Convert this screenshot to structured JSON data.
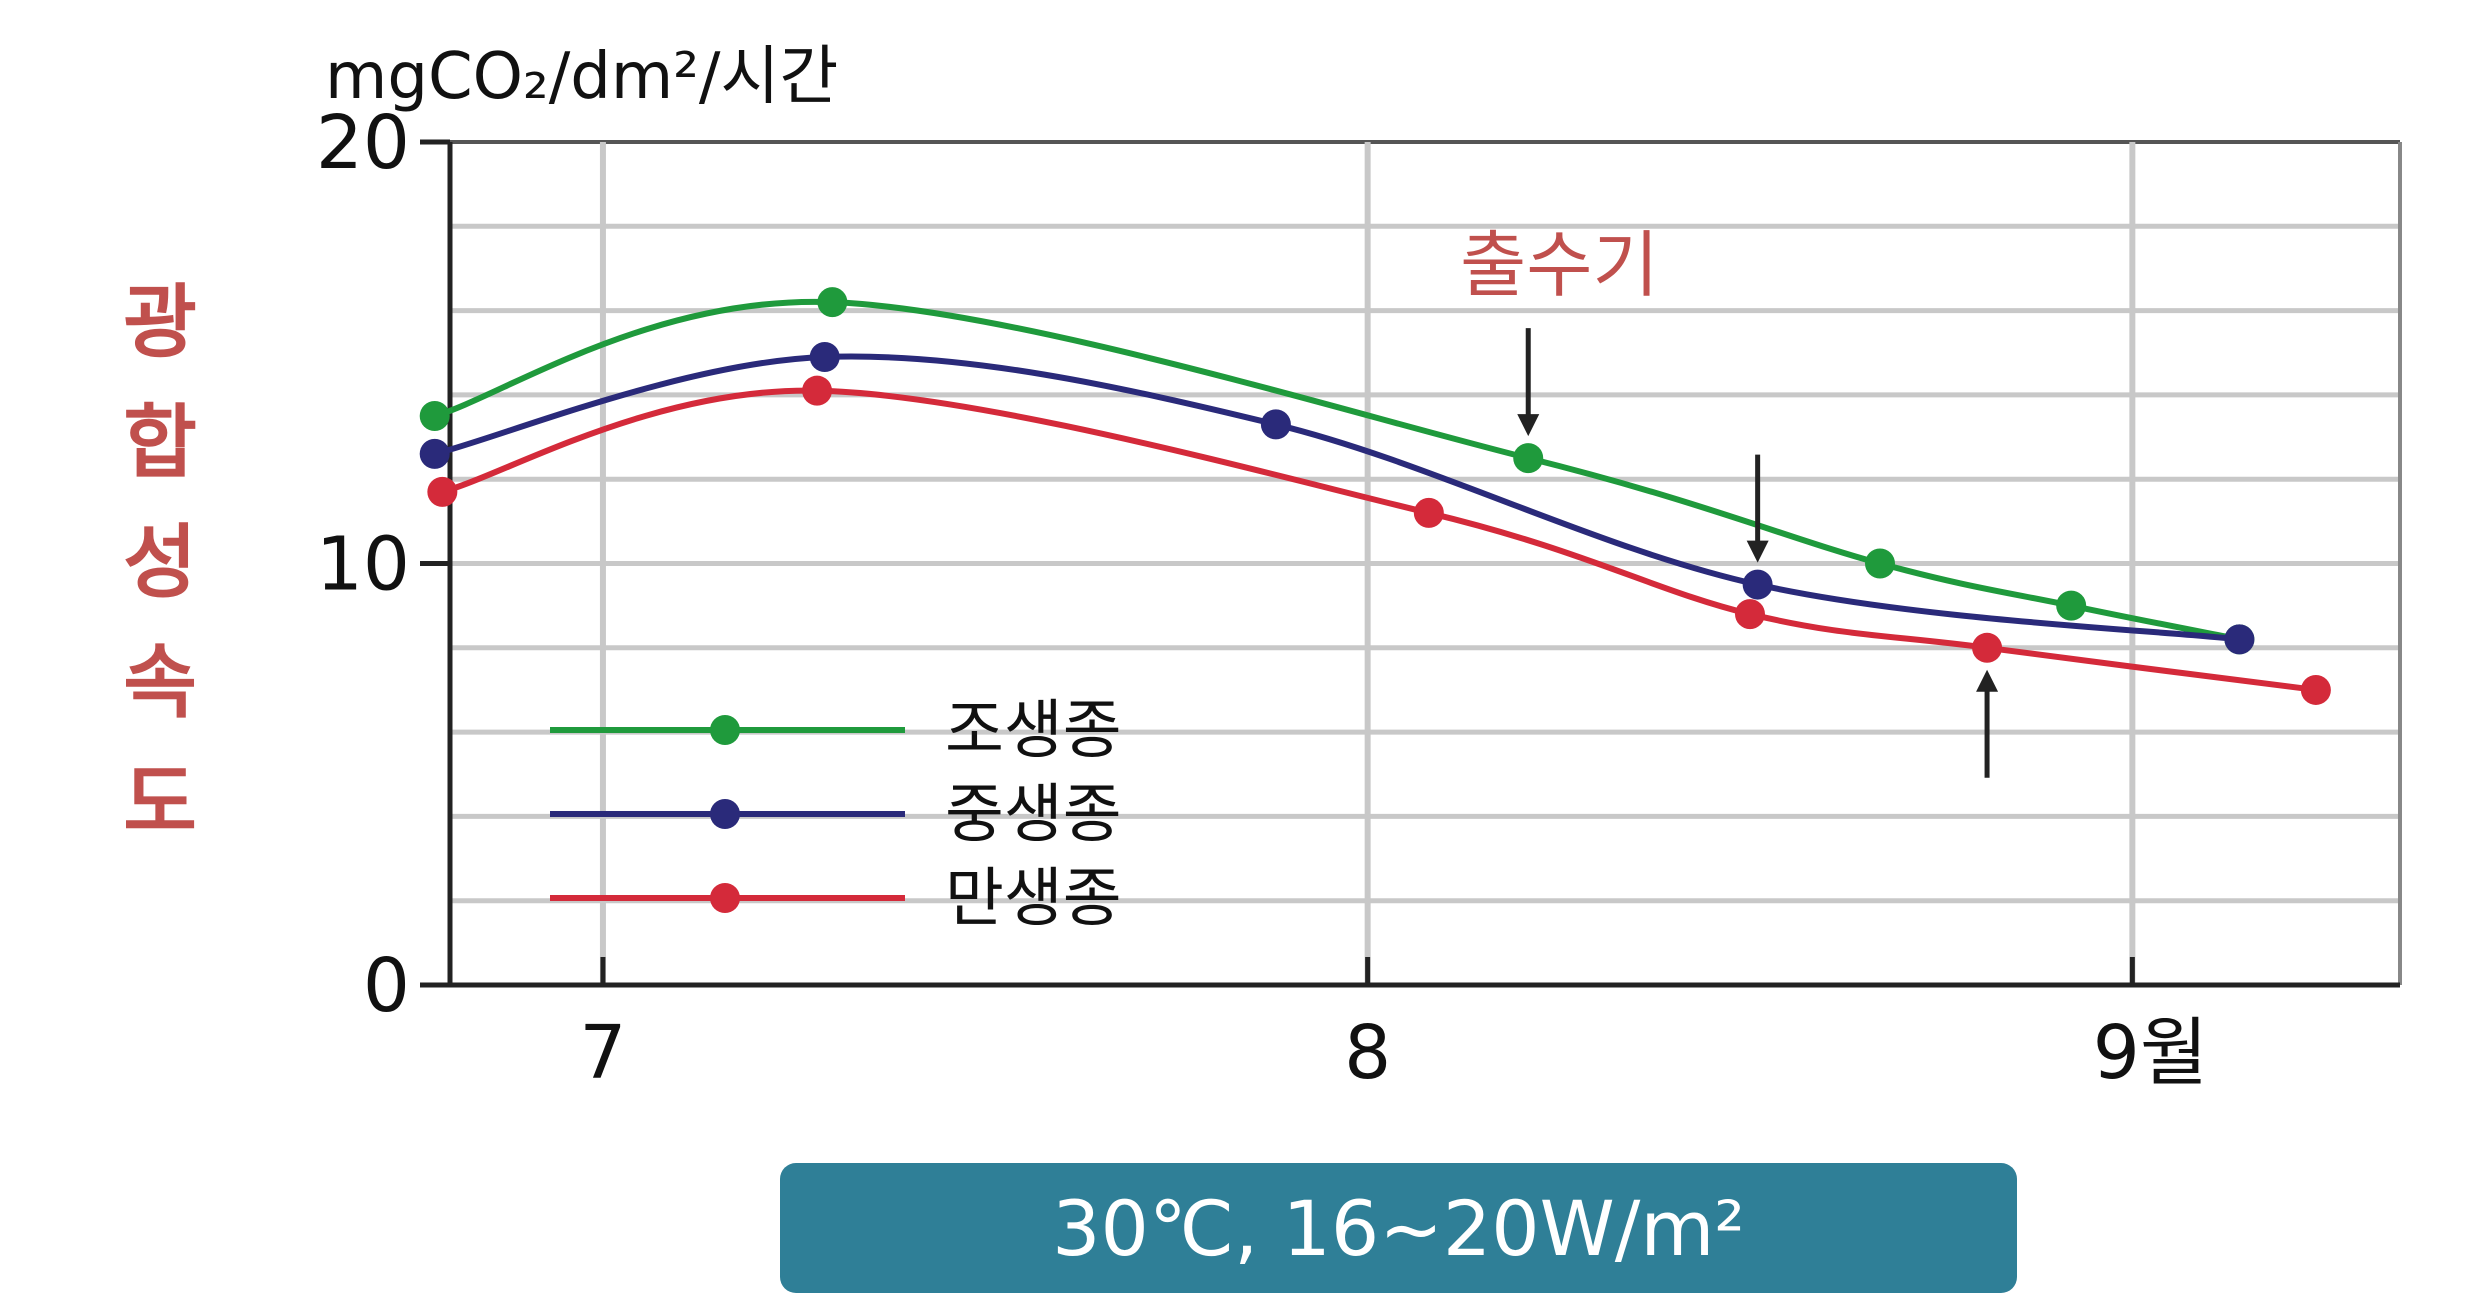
{
  "chart_data": {
    "type": "line",
    "title": "",
    "xlabel": "",
    "ylabel": "광합성속도",
    "unit_label": "mgCO₂/dm²/시간",
    "ylim": [
      0,
      20
    ],
    "xlim": [
      6.8,
      9.35
    ],
    "yticks": [
      {
        "value": 0,
        "label": "0"
      },
      {
        "value": 10,
        "label": "10"
      },
      {
        "value": 20,
        "label": "20"
      }
    ],
    "xticks": [
      {
        "value": 7,
        "label": "7"
      },
      {
        "value": 8,
        "label": "8"
      },
      {
        "value": 9,
        "label": "9월"
      }
    ],
    "grid": true,
    "legend_placement": "bottom-left",
    "annotation": "출수기",
    "series": [
      {
        "name": "조생종",
        "color": "#1f9a3c",
        "x": [
          6.78,
          7.3,
          8.21,
          8.67,
          8.92,
          9.14
        ],
        "y": [
          13.5,
          16.2,
          12.5,
          10.0,
          9.0,
          8.2
        ],
        "arrow_at_x": 8.21
      },
      {
        "name": "중생종",
        "color": "#2a2a7a",
        "x": [
          6.78,
          7.29,
          7.88,
          8.51,
          9.14
        ],
        "y": [
          12.6,
          14.9,
          13.3,
          9.5,
          8.2
        ],
        "arrow_at_x": 8.51
      },
      {
        "name": "만생종",
        "color": "#d42a3a",
        "x": [
          6.79,
          7.28,
          8.08,
          8.5,
          8.81,
          9.24
        ],
        "y": [
          11.7,
          14.1,
          11.2,
          8.8,
          8.0,
          7.0
        ],
        "arrow_at_x": 8.81
      }
    ]
  },
  "footer": {
    "text": "30℃, 16~20W/m²",
    "color": "#2f7f97"
  },
  "colors": {
    "ylabel": "#c0504d",
    "annotation": "#c0504d",
    "grid": "#c8c8c8",
    "axis": "#222222"
  }
}
